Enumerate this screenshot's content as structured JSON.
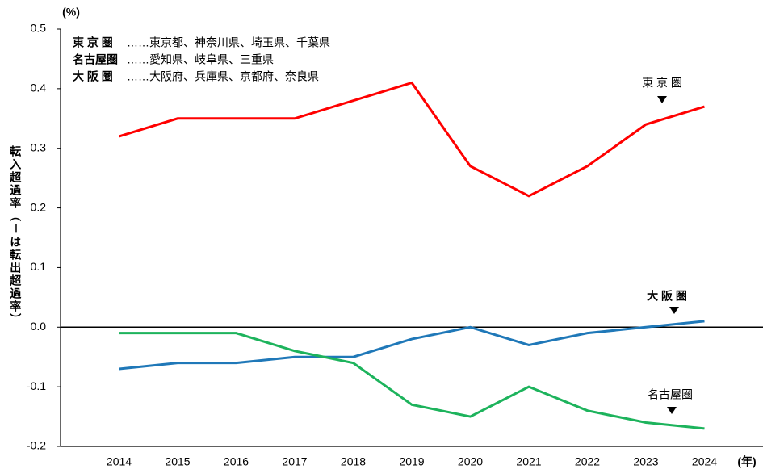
{
  "chart_data": {
    "type": "line",
    "y_unit": "(%)",
    "x_unit": "(年)",
    "y_label": "転入超過率（－は転出超過率）",
    "categories": [
      "2014",
      "2015",
      "2016",
      "2017",
      "2018",
      "2019",
      "2020",
      "2021",
      "2022",
      "2023",
      "2024"
    ],
    "series": [
      {
        "name": "東 京 圏",
        "color": "#ff0000",
        "values": [
          0.32,
          0.35,
          0.35,
          0.35,
          0.38,
          0.41,
          0.27,
          0.22,
          0.27,
          0.34,
          0.37
        ]
      },
      {
        "name": "大 阪 圏",
        "color": "#1f78b8",
        "values": [
          -0.07,
          -0.06,
          -0.06,
          -0.05,
          -0.05,
          -0.02,
          0.0,
          -0.03,
          -0.01,
          0.0,
          0.01
        ]
      },
      {
        "name": "名古屋圏",
        "color": "#1db35c",
        "values": [
          -0.01,
          -0.01,
          -0.01,
          -0.04,
          -0.06,
          -0.13,
          -0.15,
          -0.1,
          -0.14,
          -0.16,
          -0.17
        ]
      }
    ],
    "notes": [
      {
        "region": "東 京 圏",
        "members": "……東京都、神奈川県、埼玉県、千葉県"
      },
      {
        "region": "名古屋圏",
        "members": "……愛知県、岐阜県、三重県"
      },
      {
        "region": "大 阪 圏",
        "members": "……大阪府、兵庫県、京都府、奈良県"
      }
    ],
    "ylim": [
      -0.2,
      0.5
    ],
    "yticks": [
      -0.2,
      -0.1,
      {
        "value": 0,
        "label": "0.0"
      },
      0.1,
      0.2,
      0.3,
      0.4,
      0.5
    ]
  }
}
